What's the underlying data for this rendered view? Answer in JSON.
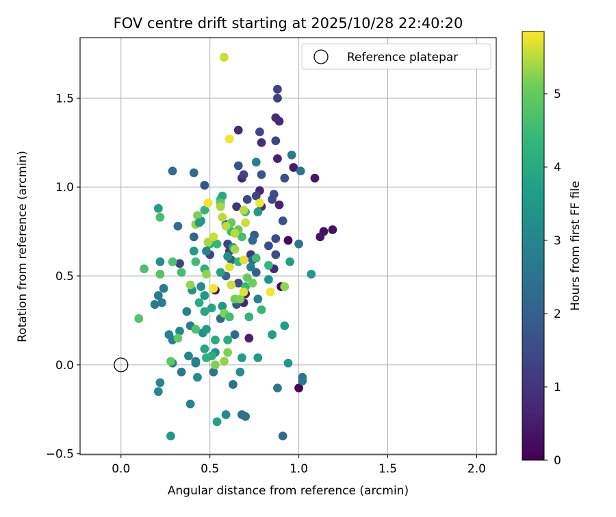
{
  "chart_data": {
    "type": "scatter",
    "title": "FOV centre drift starting at 2025/10/28 22:40:20",
    "xlabel": "Angular distance from reference (arcmin)",
    "ylabel": "Rotation from reference (arcmin)",
    "xlim": [
      -0.23,
      2.11
    ],
    "ylim": [
      -0.505,
      1.84
    ],
    "x_ticks": [
      0.0,
      0.5,
      1.0,
      1.5,
      2.0
    ],
    "x_tick_labels": [
      "0.0",
      "0.5",
      "1.0",
      "1.5",
      "2.0"
    ],
    "y_ticks": [
      -0.5,
      0.0,
      0.5,
      1.0,
      1.5
    ],
    "y_tick_labels": [
      "−0.5",
      "0.0",
      "0.5",
      "1.0",
      "1.5"
    ],
    "grid": true,
    "legend": {
      "position": "top-right",
      "entries": [
        {
          "label": "Reference platepar",
          "marker": "open-circle"
        }
      ]
    },
    "reference_point": {
      "x": 0.0,
      "y": 0.0
    },
    "colorbar": {
      "label": "Hours from first FF file",
      "range": [
        0,
        5.85
      ],
      "ticks": [
        0,
        1,
        2,
        3,
        4,
        5
      ],
      "tick_labels": [
        "0",
        "1",
        "2",
        "3",
        "4",
        "5"
      ],
      "colormap": "viridis"
    },
    "points": [
      {
        "x": 1.0,
        "y": -0.13,
        "h": 0.1
      },
      {
        "x": 0.9,
        "y": 0.44,
        "h": 0.2
      },
      {
        "x": 0.94,
        "y": 0.7,
        "h": 0.2
      },
      {
        "x": 1.19,
        "y": 0.76,
        "h": 0.3
      },
      {
        "x": 1.14,
        "y": 0.75,
        "h": 0.3
      },
      {
        "x": 1.12,
        "y": 0.72,
        "h": 0.4
      },
      {
        "x": 1.09,
        "y": 1.05,
        "h": 0.4
      },
      {
        "x": 0.97,
        "y": 1.11,
        "h": 0.5
      },
      {
        "x": 0.88,
        "y": 1.16,
        "h": 0.6
      },
      {
        "x": 0.89,
        "y": 0.9,
        "h": 0.6
      },
      {
        "x": 0.72,
        "y": 0.15,
        "h": 0.6
      },
      {
        "x": 0.53,
        "y": 0.42,
        "h": 0.3
      },
      {
        "x": 0.7,
        "y": 0.4,
        "h": 0.5
      },
      {
        "x": 0.69,
        "y": 0.35,
        "h": 0.7
      },
      {
        "x": 0.86,
        "y": 0.54,
        "h": 0.8
      },
      {
        "x": 0.79,
        "y": 0.89,
        "h": 0.9
      },
      {
        "x": 0.78,
        "y": 0.98,
        "h": 0.7
      },
      {
        "x": 0.68,
        "y": 1.05,
        "h": 0.7
      },
      {
        "x": 0.66,
        "y": 1.32,
        "h": 0.8
      },
      {
        "x": 0.87,
        "y": 1.39,
        "h": 0.8
      },
      {
        "x": 0.89,
        "y": 1.37,
        "h": 0.8
      },
      {
        "x": 0.79,
        "y": 1.25,
        "h": 0.9
      },
      {
        "x": 0.73,
        "y": 0.62,
        "h": 1.0
      },
      {
        "x": 0.65,
        "y": 0.89,
        "h": 1.0
      },
      {
        "x": 0.61,
        "y": 0.64,
        "h": 1.1
      },
      {
        "x": 0.88,
        "y": 1.55,
        "h": 1.3
      },
      {
        "x": 0.88,
        "y": 1.5,
        "h": 1.3
      },
      {
        "x": 0.87,
        "y": 1.26,
        "h": 1.4
      },
      {
        "x": 0.78,
        "y": 1.31,
        "h": 1.4
      },
      {
        "x": 0.86,
        "y": 0.96,
        "h": 1.5
      },
      {
        "x": 0.85,
        "y": 0.93,
        "h": 1.5
      },
      {
        "x": 0.76,
        "y": 0.95,
        "h": 1.4
      },
      {
        "x": 0.69,
        "y": 1.07,
        "h": 1.4
      },
      {
        "x": 0.66,
        "y": 1.12,
        "h": 1.6
      },
      {
        "x": 0.71,
        "y": 0.93,
        "h": 1.4
      },
      {
        "x": 0.92,
        "y": 1.05,
        "h": 1.6
      },
      {
        "x": 0.91,
        "y": 0.81,
        "h": 1.6
      },
      {
        "x": 0.87,
        "y": 0.71,
        "h": 1.5
      },
      {
        "x": 0.83,
        "y": 0.67,
        "h": 1.5
      },
      {
        "x": 0.87,
        "y": 0.62,
        "h": 1.5
      },
      {
        "x": 0.6,
        "y": 0.68,
        "h": 1.3
      },
      {
        "x": 0.66,
        "y": 0.46,
        "h": 1.5
      },
      {
        "x": 0.5,
        "y": 0.62,
        "h": 1.4
      },
      {
        "x": 0.33,
        "y": 0.57,
        "h": 1.3
      },
      {
        "x": 0.47,
        "y": 1.01,
        "h": 1.7
      },
      {
        "x": 0.59,
        "y": 0.79,
        "h": 1.8
      },
      {
        "x": 0.75,
        "y": 0.73,
        "h": 1.9
      },
      {
        "x": 0.79,
        "y": 1.07,
        "h": 1.8
      },
      {
        "x": 0.65,
        "y": 0.34,
        "h": 1.8
      },
      {
        "x": 0.62,
        "y": 0.59,
        "h": 1.9
      },
      {
        "x": 0.76,
        "y": 0.52,
        "h": 2.0
      },
      {
        "x": 0.59,
        "y": 0.5,
        "h": 2.1
      },
      {
        "x": 0.74,
        "y": 0.59,
        "h": 2.1
      },
      {
        "x": 0.74,
        "y": 0.7,
        "h": 2.2
      },
      {
        "x": 0.56,
        "y": 0.26,
        "h": 2.2
      },
      {
        "x": 0.58,
        "y": 0.29,
        "h": 2.3
      },
      {
        "x": 0.64,
        "y": 0.17,
        "h": 2.3
      },
      {
        "x": 0.41,
        "y": 0.72,
        "h": 2.2
      },
      {
        "x": 0.41,
        "y": 1.08,
        "h": 2.3
      },
      {
        "x": 0.29,
        "y": 1.09,
        "h": 2.3
      },
      {
        "x": 0.32,
        "y": 0.78,
        "h": 2.4
      },
      {
        "x": 0.52,
        "y": -0.04,
        "h": 2.5
      },
      {
        "x": 0.63,
        "y": -0.11,
        "h": 2.5
      },
      {
        "x": 0.68,
        "y": -0.28,
        "h": 2.5
      },
      {
        "x": 0.7,
        "y": -0.29,
        "h": 2.5
      },
      {
        "x": 0.91,
        "y": -0.4,
        "h": 2.4
      },
      {
        "x": 0.88,
        "y": -0.13,
        "h": 2.6
      },
      {
        "x": 1.02,
        "y": -0.07,
        "h": 2.6
      },
      {
        "x": 1.02,
        "y": -0.09,
        "h": 2.7
      },
      {
        "x": 1.0,
        "y": 0.68,
        "h": 2.6
      },
      {
        "x": 1.01,
        "y": 1.09,
        "h": 2.6
      },
      {
        "x": 0.96,
        "y": 1.18,
        "h": 2.7
      },
      {
        "x": 0.76,
        "y": 1.14,
        "h": 2.9
      },
      {
        "x": 0.73,
        "y": 0.55,
        "h": 2.8
      },
      {
        "x": 0.77,
        "y": 0.37,
        "h": 2.9
      },
      {
        "x": 0.39,
        "y": 0.22,
        "h": 2.8
      },
      {
        "x": 0.42,
        "y": 0.02,
        "h": 2.7
      },
      {
        "x": 0.42,
        "y": 0.01,
        "h": 2.9
      },
      {
        "x": 0.37,
        "y": 0.3,
        "h": 2.9
      },
      {
        "x": 0.34,
        "y": -0.04,
        "h": 2.7
      },
      {
        "x": 0.21,
        "y": 0.39,
        "h": 2.7
      },
      {
        "x": 0.19,
        "y": 0.34,
        "h": 2.7
      },
      {
        "x": 0.23,
        "y": 0.35,
        "h": 2.8
      },
      {
        "x": 0.24,
        "y": 0.43,
        "h": 2.8
      },
      {
        "x": 0.27,
        "y": 0.17,
        "h": 2.9
      },
      {
        "x": 0.29,
        "y": 0.14,
        "h": 2.9
      },
      {
        "x": 0.33,
        "y": 0.19,
        "h": 3.1
      },
      {
        "x": 0.38,
        "y": 0.05,
        "h": 3.0
      },
      {
        "x": 0.29,
        "y": 0.01,
        "h": 3.0
      },
      {
        "x": 0.39,
        "y": -0.22,
        "h": 3.0
      },
      {
        "x": 0.59,
        "y": -0.28,
        "h": 3.1
      },
      {
        "x": 0.21,
        "y": -0.15,
        "h": 3.1
      },
      {
        "x": 0.22,
        "y": -0.1,
        "h": 3.1
      },
      {
        "x": 0.43,
        "y": -0.07,
        "h": 3.2
      },
      {
        "x": 0.22,
        "y": 0.58,
        "h": 3.2
      },
      {
        "x": 0.46,
        "y": 0.18,
        "h": 3.2
      },
      {
        "x": 0.53,
        "y": 0.07,
        "h": 3.3
      },
      {
        "x": 0.47,
        "y": 0.39,
        "h": 3.4
      },
      {
        "x": 0.4,
        "y": 0.42,
        "h": 3.4
      },
      {
        "x": 0.6,
        "y": 0.61,
        "h": 3.3
      },
      {
        "x": 0.83,
        "y": 0.48,
        "h": 3.4
      },
      {
        "x": 0.57,
        "y": 0.33,
        "h": 3.5
      },
      {
        "x": 0.67,
        "y": -0.04,
        "h": 3.3
      },
      {
        "x": 0.68,
        "y": 0.04,
        "h": 3.7
      },
      {
        "x": 0.77,
        "y": 0.04,
        "h": 3.6
      },
      {
        "x": 0.94,
        "y": 0.01,
        "h": 3.5
      },
      {
        "x": 0.92,
        "y": 0.22,
        "h": 3.7
      },
      {
        "x": 1.07,
        "y": 0.51,
        "h": 3.5
      },
      {
        "x": 0.95,
        "y": 0.58,
        "h": 3.7
      },
      {
        "x": 0.85,
        "y": 0.17,
        "h": 3.7
      },
      {
        "x": 0.77,
        "y": 0.86,
        "h": 3.6
      },
      {
        "x": 0.63,
        "y": 0.66,
        "h": 3.8
      },
      {
        "x": 0.56,
        "y": 0.52,
        "h": 3.8
      },
      {
        "x": 0.61,
        "y": 0.27,
        "h": 3.6
      },
      {
        "x": 0.48,
        "y": 0.2,
        "h": 3.6
      },
      {
        "x": 0.41,
        "y": 0.64,
        "h": 3.5
      },
      {
        "x": 0.45,
        "y": 0.81,
        "h": 3.6
      },
      {
        "x": 0.21,
        "y": 0.88,
        "h": 3.7
      },
      {
        "x": 0.28,
        "y": -0.4,
        "h": 3.5
      },
      {
        "x": 0.54,
        "y": -0.32,
        "h": 3.8
      },
      {
        "x": 0.47,
        "y": 0.09,
        "h": 3.9
      },
      {
        "x": 0.47,
        "y": 0.3,
        "h": 3.9
      },
      {
        "x": 0.51,
        "y": 0.32,
        "h": 3.9
      },
      {
        "x": 0.53,
        "y": 0.14,
        "h": 4.0
      },
      {
        "x": 0.51,
        "y": 0.05,
        "h": 4.1
      },
      {
        "x": 0.6,
        "y": 0.14,
        "h": 4.1
      },
      {
        "x": 0.48,
        "y": 0.04,
        "h": 4.2
      },
      {
        "x": 0.44,
        "y": 0.35,
        "h": 4.1
      },
      {
        "x": 0.47,
        "y": 0.54,
        "h": 4.2
      },
      {
        "x": 0.5,
        "y": 0.68,
        "h": 4.2
      },
      {
        "x": 0.47,
        "y": 0.87,
        "h": 4.3
      },
      {
        "x": 0.56,
        "y": 0.93,
        "h": 4.3
      },
      {
        "x": 0.57,
        "y": 0.95,
        "h": 4.0
      },
      {
        "x": 0.54,
        "y": 0.68,
        "h": 4.4
      },
      {
        "x": 0.62,
        "y": 0.75,
        "h": 4.4
      },
      {
        "x": 0.66,
        "y": 0.58,
        "h": 4.3
      },
      {
        "x": 0.7,
        "y": 0.44,
        "h": 4.4
      },
      {
        "x": 0.72,
        "y": 0.27,
        "h": 4.3
      },
      {
        "x": 0.79,
        "y": 0.31,
        "h": 4.4
      },
      {
        "x": 0.83,
        "y": 0.56,
        "h": 4.4
      },
      {
        "x": 0.76,
        "y": 0.6,
        "h": 4.5
      },
      {
        "x": 0.7,
        "y": 0.86,
        "h": 4.5
      },
      {
        "x": 0.68,
        "y": 0.72,
        "h": 4.6
      },
      {
        "x": 0.42,
        "y": 0.58,
        "h": 4.5
      },
      {
        "x": 0.34,
        "y": 0.52,
        "h": 4.6
      },
      {
        "x": 0.42,
        "y": 0.2,
        "h": 4.7
      },
      {
        "x": 0.29,
        "y": 0.58,
        "h": 4.7
      },
      {
        "x": 0.22,
        "y": 0.83,
        "h": 4.6
      },
      {
        "x": 0.13,
        "y": 0.54,
        "h": 4.7
      },
      {
        "x": 0.1,
        "y": 0.26,
        "h": 4.8
      },
      {
        "x": 0.22,
        "y": 0.51,
        "h": 4.8
      },
      {
        "x": 0.28,
        "y": 0.02,
        "h": 4.9
      },
      {
        "x": 0.32,
        "y": 0.15,
        "h": 4.9
      },
      {
        "x": 0.56,
        "y": 0.91,
        "h": 4.9
      },
      {
        "x": 0.62,
        "y": 0.8,
        "h": 5.0
      },
      {
        "x": 0.66,
        "y": 0.76,
        "h": 5.0
      },
      {
        "x": 0.71,
        "y": 0.49,
        "h": 5.0
      },
      {
        "x": 0.74,
        "y": 0.46,
        "h": 5.1
      },
      {
        "x": 0.64,
        "y": 0.37,
        "h": 5.1
      },
      {
        "x": 0.67,
        "y": 0.37,
        "h": 5.2
      },
      {
        "x": 0.58,
        "y": 0.29,
        "h": 5.2
      },
      {
        "x": 0.6,
        "y": 0.07,
        "h": 5.2
      },
      {
        "x": 0.53,
        "y": 0.0,
        "h": 5.2
      },
      {
        "x": 0.58,
        "y": 0.02,
        "h": 5.3
      },
      {
        "x": 0.92,
        "y": 0.44,
        "h": 5.3
      },
      {
        "x": 0.43,
        "y": 0.84,
        "h": 5.2
      },
      {
        "x": 0.42,
        "y": 0.79,
        "h": 5.3
      },
      {
        "x": 0.48,
        "y": 0.51,
        "h": 5.3
      },
      {
        "x": 0.39,
        "y": 0.45,
        "h": 5.3
      },
      {
        "x": 0.49,
        "y": 0.69,
        "h": 5.4
      },
      {
        "x": 0.56,
        "y": 0.89,
        "h": 5.4
      },
      {
        "x": 0.57,
        "y": 0.83,
        "h": 5.5
      },
      {
        "x": 0.59,
        "y": 0.78,
        "h": 5.5
      },
      {
        "x": 0.64,
        "y": 0.74,
        "h": 5.5
      },
      {
        "x": 0.69,
        "y": 0.87,
        "h": 5.5
      },
      {
        "x": 0.7,
        "y": 0.8,
        "h": 5.6
      },
      {
        "x": 0.69,
        "y": 0.59,
        "h": 5.7
      },
      {
        "x": 0.61,
        "y": 0.55,
        "h": 5.7
      },
      {
        "x": 0.62,
        "y": 0.45,
        "h": 5.6
      },
      {
        "x": 0.69,
        "y": 0.41,
        "h": 5.7
      },
      {
        "x": 0.84,
        "y": 0.41,
        "h": 5.8
      },
      {
        "x": 0.52,
        "y": 0.43,
        "h": 5.8
      },
      {
        "x": 0.49,
        "y": 0.91,
        "h": 5.8
      },
      {
        "x": 0.78,
        "y": 0.91,
        "h": 5.8
      },
      {
        "x": 0.61,
        "y": 1.27,
        "h": 5.8
      },
      {
        "x": 0.58,
        "y": 1.73,
        "h": 5.6
      },
      {
        "x": 0.52,
        "y": 0.72,
        "h": 5.6
      },
      {
        "x": 0.64,
        "y": 0.65,
        "h": 5.4
      },
      {
        "x": 0.61,
        "y": 0.27,
        "h": 4.6
      },
      {
        "x": 0.45,
        "y": 0.44,
        "h": 3.2
      },
      {
        "x": 0.44,
        "y": 0.8,
        "h": 3.5
      },
      {
        "x": 0.48,
        "y": 0.64,
        "h": 3.0
      }
    ]
  }
}
